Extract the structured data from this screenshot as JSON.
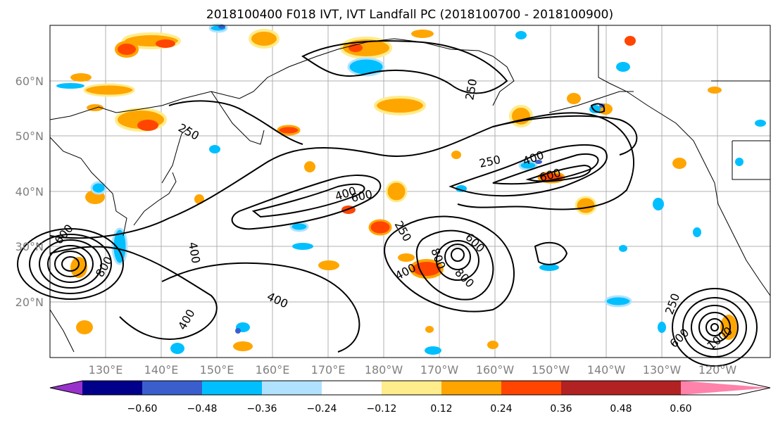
{
  "title": "2018100400 F018 IVT, IVT Landfall PC (2018100700 - 2018100900)",
  "lat_labels": [
    "60°N",
    "50°N",
    "40°N",
    "30°N",
    "20°N"
  ],
  "lon_labels": [
    "130°E",
    "140°E",
    "150°E",
    "160°E",
    "170°E",
    "180°W",
    "170°W",
    "160°W",
    "150°W",
    "140°W",
    "130°W",
    "120°W"
  ],
  "colorbar": {
    "colors": [
      "#9932cc",
      "#00008b",
      "#3a5fcd",
      "#00bfff",
      "#b0e2ff",
      "#ffffff",
      "#ffec8b",
      "#ffa500",
      "#ff4500",
      "#b22222",
      "#ff82ab"
    ],
    "tick_labels": [
      "−0.60",
      "−0.48",
      "−0.36",
      "−0.24",
      "−0.12",
      "0.12",
      "0.24",
      "0.36",
      "0.48",
      "0.60"
    ]
  },
  "contour_labels": [
    "250",
    "250",
    "250",
    "250",
    "250",
    "400",
    "400",
    "400",
    "400",
    "400",
    "400",
    "600",
    "600",
    "600",
    "600",
    "600",
    "800",
    "800",
    "800",
    "1000"
  ]
}
